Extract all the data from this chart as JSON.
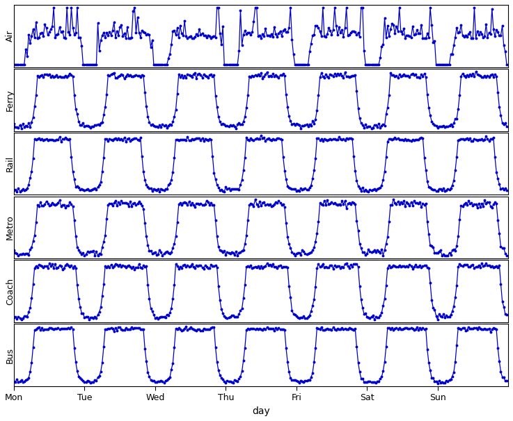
{
  "labels": [
    "Air",
    "Ferry",
    "Rail",
    "Metro",
    "Coach",
    "Bus"
  ],
  "line_color": "#0000CC",
  "marker": "o",
  "markersize": 1.8,
  "linewidth": 0.9,
  "figsize": [
    7.37,
    6.06
  ],
  "dpi": 100,
  "xlabel": "day",
  "xtick_labels": [
    "Mon",
    "Tue",
    "Wed",
    "Thu",
    "Fri",
    "Sat",
    "Sun"
  ],
  "n_points_per_day": 48,
  "n_days": 7,
  "ylabel_fontsize": 9,
  "xlabel_fontsize": 10,
  "xtick_fontsize": 9
}
